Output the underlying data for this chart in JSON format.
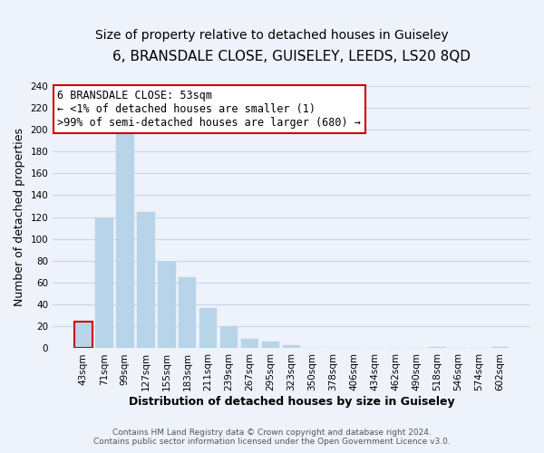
{
  "title": "6, BRANSDALE CLOSE, GUISELEY, LEEDS, LS20 8QD",
  "subtitle": "Size of property relative to detached houses in Guiseley",
  "xlabel": "Distribution of detached houses by size in Guiseley",
  "ylabel": "Number of detached properties",
  "footer_line1": "Contains HM Land Registry data © Crown copyright and database right 2024.",
  "footer_line2": "Contains public sector information licensed under the Open Government Licence v3.0.",
  "bin_labels": [
    "43sqm",
    "71sqm",
    "99sqm",
    "127sqm",
    "155sqm",
    "183sqm",
    "211sqm",
    "239sqm",
    "267sqm",
    "295sqm",
    "323sqm",
    "350sqm",
    "378sqm",
    "406sqm",
    "434sqm",
    "462sqm",
    "490sqm",
    "518sqm",
    "546sqm",
    "574sqm",
    "602sqm"
  ],
  "bar_heights": [
    24,
    119,
    198,
    125,
    79,
    65,
    37,
    20,
    9,
    6,
    3,
    0,
    0,
    0,
    0,
    0,
    0,
    1,
    0,
    0,
    1
  ],
  "bar_color": "#b8d4e8",
  "highlight_bar_index": 0,
  "highlight_bar_edge_color": "#cc0000",
  "ylim": [
    0,
    240
  ],
  "yticks": [
    0,
    20,
    40,
    60,
    80,
    100,
    120,
    140,
    160,
    180,
    200,
    220,
    240
  ],
  "grid_color": "#c8d4e8",
  "background_color": "#eef2fb",
  "plot_bg_color": "#eef2fb",
  "annotation_title": "6 BRANSDALE CLOSE: 53sqm",
  "annotation_line1": "← <1% of detached houses are smaller (1)",
  "annotation_line2": ">99% of semi-detached houses are larger (680) →",
  "annotation_box_color": "#ffffff",
  "annotation_box_edge_color": "#cc0000",
  "title_fontsize": 11,
  "subtitle_fontsize": 10,
  "axis_label_fontsize": 9,
  "tick_fontsize": 7.5,
  "annotation_fontsize": 8.5,
  "footer_fontsize": 6.5
}
